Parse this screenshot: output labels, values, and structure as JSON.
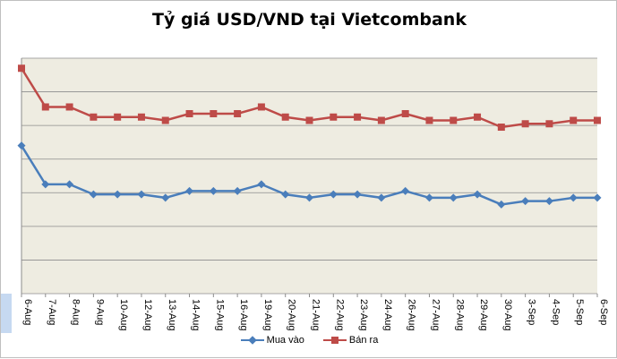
{
  "chart_data": {
    "type": "line",
    "title": "Tỷ giá USD/VND tại Vietcombank",
    "xlabel": "",
    "ylabel": "",
    "categories": [
      "6-Aug",
      "7-Aug",
      "8-Aug",
      "9-Aug",
      "10-Aug",
      "12-Aug",
      "13-Aug",
      "14-Aug",
      "15-Aug",
      "16-Aug",
      "19-Aug",
      "20-Aug",
      "21-Aug",
      "22-Aug",
      "23-Aug",
      "24-Aug",
      "26-Aug",
      "27-Aug",
      "28-Aug",
      "29-Aug",
      "30-Aug",
      "3-Sep",
      "4-Sep",
      "5-Sep",
      "6-Sep"
    ],
    "ylim": [
      0,
      7
    ],
    "grid": true,
    "legend_position": "bottom",
    "series": [
      {
        "name": "Mua vào",
        "color": "#4a7ebb",
        "marker": "diamond",
        "values": [
          4.4,
          3.25,
          3.25,
          2.95,
          2.95,
          2.95,
          2.85,
          3.05,
          3.05,
          3.05,
          3.25,
          2.95,
          2.85,
          2.95,
          2.95,
          2.85,
          3.05,
          2.85,
          2.85,
          2.95,
          2.65,
          2.75,
          2.75,
          2.85,
          2.85
        ]
      },
      {
        "name": "Bán ra",
        "color": "#be4b48",
        "marker": "square",
        "values": [
          6.7,
          5.55,
          5.55,
          5.25,
          5.25,
          5.25,
          5.15,
          5.35,
          5.35,
          5.35,
          5.55,
          5.25,
          5.15,
          5.25,
          5.25,
          5.15,
          5.35,
          5.15,
          5.15,
          5.25,
          4.95,
          5.05,
          5.05,
          5.15,
          5.15
        ]
      }
    ]
  },
  "colors": {
    "plot_bg": "#eeece1",
    "grid": "#8c8c8c",
    "axis_band": "#c6d9f1"
  }
}
